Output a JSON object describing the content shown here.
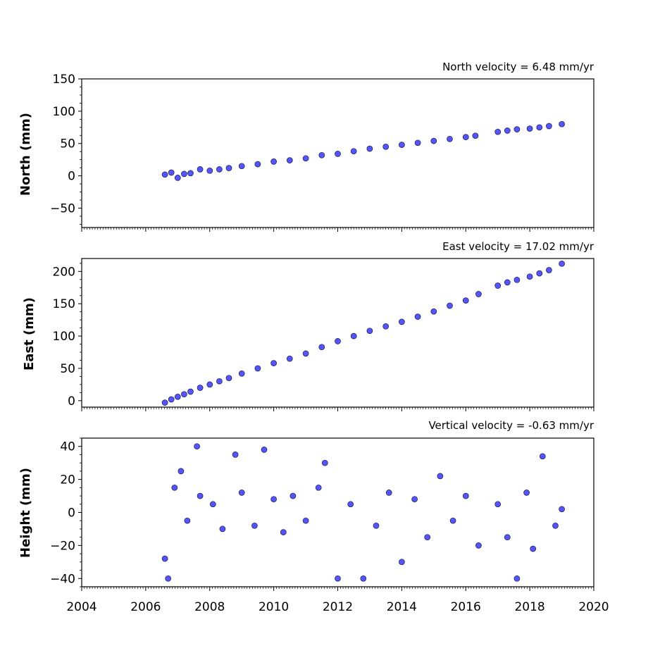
{
  "chart_data": [
    {
      "type": "scatter",
      "title": "North velocity = 6.48 mm/yr",
      "ylabel": "North (mm)",
      "xlabel": "",
      "xlim": [
        2004,
        2020
      ],
      "ylim": [
        -80,
        150
      ],
      "yticks": [
        -50,
        0,
        50,
        100,
        150
      ],
      "ytick_labels": [
        "−50",
        "0",
        "50",
        "100",
        "150"
      ],
      "x_tick_labels_visible": false,
      "series": [
        {
          "x": [
            2006.6,
            2006.8,
            2007.0,
            2007.2,
            2007.4,
            2007.7,
            2008.0,
            2008.3,
            2008.6,
            2009.0,
            2009.5,
            2010.0,
            2010.5,
            2011.0,
            2011.5,
            2012.0,
            2012.5,
            2013.0,
            2013.5,
            2014.0,
            2014.5,
            2015.0,
            2015.5,
            2016.0,
            2016.3,
            2017.0,
            2017.3,
            2017.6,
            2018.0,
            2018.3,
            2018.6,
            2019.0
          ],
          "y": [
            2,
            5,
            -3,
            3,
            4,
            10,
            8,
            10,
            12,
            15,
            18,
            22,
            24,
            27,
            32,
            34,
            38,
            42,
            45,
            48,
            51,
            54,
            57,
            60,
            62,
            68,
            70,
            72,
            73,
            75,
            77,
            80
          ]
        }
      ]
    },
    {
      "type": "scatter",
      "title": "East velocity = 17.02 mm/yr",
      "ylabel": "East (mm)",
      "xlabel": "",
      "xlim": [
        2004,
        2020
      ],
      "ylim": [
        -10,
        220
      ],
      "yticks": [
        0,
        50,
        100,
        150,
        200
      ],
      "ytick_labels": [
        "0",
        "50",
        "100",
        "150",
        "200"
      ],
      "x_tick_labels_visible": false,
      "series": [
        {
          "x": [
            2006.6,
            2006.8,
            2007.0,
            2007.2,
            2007.4,
            2007.7,
            2008.0,
            2008.3,
            2008.6,
            2009.0,
            2009.5,
            2010.0,
            2010.5,
            2011.0,
            2011.5,
            2012.0,
            2012.5,
            2013.0,
            2013.5,
            2014.0,
            2014.5,
            2015.0,
            2015.5,
            2016.0,
            2016.4,
            2017.0,
            2017.3,
            2017.6,
            2018.0,
            2018.3,
            2018.6,
            2019.0
          ],
          "y": [
            -3,
            2,
            6,
            10,
            14,
            20,
            25,
            30,
            35,
            42,
            50,
            58,
            65,
            73,
            83,
            92,
            100,
            108,
            115,
            122,
            130,
            138,
            147,
            155,
            165,
            178,
            183,
            187,
            192,
            197,
            202,
            212
          ]
        }
      ]
    },
    {
      "type": "scatter",
      "title": "Vertical velocity = -0.63 mm/yr",
      "ylabel": "Height (mm)",
      "xlabel": "",
      "xlim": [
        2004,
        2020
      ],
      "ylim": [
        -45,
        45
      ],
      "yticks": [
        -40,
        -20,
        0,
        20,
        40
      ],
      "ytick_labels": [
        "−40",
        "−20",
        "0",
        "20",
        "40"
      ],
      "xticks": [
        2004,
        2006,
        2008,
        2010,
        2012,
        2014,
        2016,
        2018,
        2020
      ],
      "xtick_labels": [
        "2004",
        "2006",
        "2008",
        "2010",
        "2012",
        "2014",
        "2016",
        "2018",
        "2020"
      ],
      "x_tick_labels_visible": true,
      "series": [
        {
          "x": [
            2006.6,
            2006.7,
            2006.9,
            2007.1,
            2007.3,
            2007.6,
            2007.7,
            2008.1,
            2008.4,
            2008.8,
            2009.0,
            2009.4,
            2009.7,
            2010.0,
            2010.3,
            2010.6,
            2011.0,
            2011.4,
            2011.6,
            2012.0,
            2012.4,
            2012.8,
            2013.2,
            2013.6,
            2014.0,
            2014.4,
            2014.8,
            2015.2,
            2015.6,
            2016.0,
            2016.4,
            2017.0,
            2017.3,
            2017.6,
            2017.9,
            2018.1,
            2018.4,
            2018.8,
            2019.0
          ],
          "y": [
            -28,
            -40,
            15,
            25,
            -5,
            40,
            10,
            5,
            -10,
            35,
            12,
            -8,
            38,
            8,
            -12,
            10,
            -5,
            15,
            30,
            -40,
            5,
            -40,
            -8,
            12,
            -30,
            8,
            -15,
            22,
            -5,
            10,
            -20,
            5,
            -15,
            -40,
            12,
            -22,
            34,
            -8,
            2
          ]
        }
      ]
    }
  ],
  "colors": {
    "marker_fill": "#5555ff",
    "marker_edge": "#1a1a40"
  }
}
